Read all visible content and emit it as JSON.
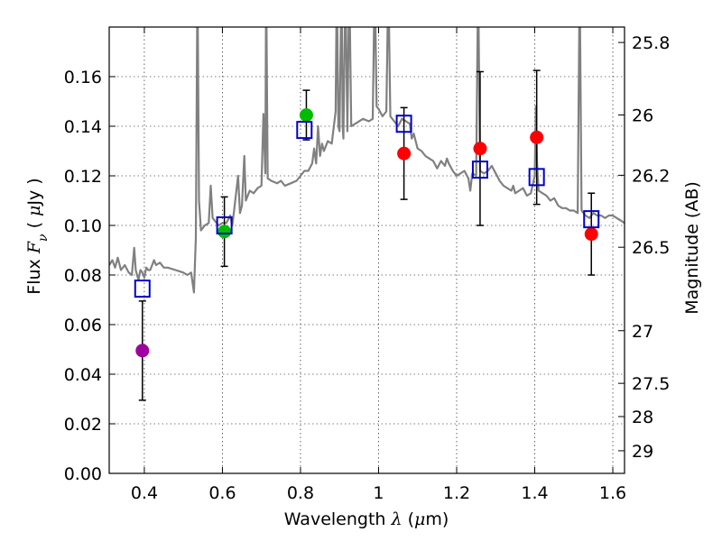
{
  "chart_data": {
    "type": "scatter",
    "xlabel": {
      "pre": "Wavelength  ",
      "sym": "λ",
      "post": " (",
      "mu": "μ",
      "unit": "m)"
    },
    "ylabel": {
      "pre": "Flux  ",
      "sym": "F",
      "sub": "ν",
      "post": "  ( ",
      "mu": "μ",
      "unit": "Jy )"
    },
    "ylabel_right": "Magnitude (AB)",
    "xlim": [
      0.31,
      1.63
    ],
    "ylim": [
      0.0,
      0.18
    ],
    "grid": true,
    "x_ticks": [
      {
        "value": 0.4,
        "label": "0.4"
      },
      {
        "value": 0.6,
        "label": "0.6"
      },
      {
        "value": 0.8,
        "label": "0.8"
      },
      {
        "value": 1.0,
        "label": "1"
      },
      {
        "value": 1.2,
        "label": "1.2"
      },
      {
        "value": 1.4,
        "label": "1.4"
      },
      {
        "value": 1.6,
        "label": "1.6"
      }
    ],
    "y_ticks": [
      {
        "value": 0.0,
        "label": "0.00"
      },
      {
        "value": 0.02,
        "label": "0.02"
      },
      {
        "value": 0.04,
        "label": "0.04"
      },
      {
        "value": 0.06,
        "label": "0.06"
      },
      {
        "value": 0.08,
        "label": "0.08"
      },
      {
        "value": 0.1,
        "label": "0.10"
      },
      {
        "value": 0.12,
        "label": "0.12"
      },
      {
        "value": 0.14,
        "label": "0.14"
      },
      {
        "value": 0.16,
        "label": "0.16"
      }
    ],
    "mag_ticks": [
      {
        "value": 25.8,
        "label": "25.8"
      },
      {
        "value": 26.0,
        "label": "26"
      },
      {
        "value": 26.2,
        "label": "26.2"
      },
      {
        "value": 26.5,
        "label": "26.5"
      },
      {
        "value": 27.0,
        "label": "27"
      },
      {
        "value": 27.5,
        "label": "27.5"
      },
      {
        "value": 28.0,
        "label": "28"
      },
      {
        "value": 29.0,
        "label": "29"
      }
    ],
    "observed": [
      {
        "x": 0.395,
        "y": 0.0495,
        "yerr": 0.02,
        "color": "#a000a0"
      },
      {
        "x": 0.605,
        "y": 0.0975,
        "yerr": 0.014,
        "color": "#00bb00"
      },
      {
        "x": 0.815,
        "y": 0.1445,
        "yerr": 0.01,
        "color": "#00bb00"
      },
      {
        "x": 1.065,
        "y": 0.129,
        "yerr": 0.0185,
        "color": "#ff0000"
      },
      {
        "x": 1.26,
        "y": 0.131,
        "yerr": 0.031,
        "color": "#ff0000"
      },
      {
        "x": 1.405,
        "y": 0.1355,
        "yerr": 0.027,
        "color": "#ff0000"
      },
      {
        "x": 1.545,
        "y": 0.0965,
        "yerr": 0.0165,
        "color": "#ff0000"
      }
    ],
    "model_points": [
      {
        "x": 0.395,
        "y": 0.0745
      },
      {
        "x": 0.605,
        "y": 0.1
      },
      {
        "x": 0.81,
        "y": 0.1385
      },
      {
        "x": 1.065,
        "y": 0.141
      },
      {
        "x": 1.26,
        "y": 0.1225
      },
      {
        "x": 1.405,
        "y": 0.1195
      },
      {
        "x": 1.545,
        "y": 0.1025
      }
    ],
    "model_spectrum": {
      "color": "#808080",
      "points": [
        [
          0.31,
          0.084
        ],
        [
          0.318,
          0.086
        ],
        [
          0.325,
          0.083
        ],
        [
          0.332,
          0.087
        ],
        [
          0.34,
          0.082
        ],
        [
          0.35,
          0.084
        ],
        [
          0.36,
          0.081
        ],
        [
          0.368,
          0.08
        ],
        [
          0.374,
          0.091
        ],
        [
          0.378,
          0.082
        ],
        [
          0.385,
          0.078
        ],
        [
          0.39,
          0.082
        ],
        [
          0.395,
          0.081
        ],
        [
          0.4,
          0.079
        ],
        [
          0.405,
          0.083
        ],
        [
          0.41,
          0.082
        ],
        [
          0.415,
          0.082
        ],
        [
          0.42,
          0.084
        ],
        [
          0.425,
          0.086
        ],
        [
          0.43,
          0.084
        ],
        [
          0.44,
          0.085
        ],
        [
          0.45,
          0.083
        ],
        [
          0.46,
          0.083
        ],
        [
          0.48,
          0.082
        ],
        [
          0.5,
          0.081
        ],
        [
          0.51,
          0.08
        ],
        [
          0.52,
          0.081
        ],
        [
          0.527,
          0.073
        ],
        [
          0.532,
          0.095
        ],
        [
          0.536,
          0.2
        ],
        [
          0.54,
          0.11
        ],
        [
          0.545,
          0.098
        ],
        [
          0.555,
          0.1
        ],
        [
          0.565,
          0.101
        ],
        [
          0.57,
          0.116
        ],
        [
          0.575,
          0.103
        ],
        [
          0.59,
          0.1
        ],
        [
          0.6,
          0.101
        ],
        [
          0.61,
          0.101
        ],
        [
          0.62,
          0.104
        ],
        [
          0.625,
          0.1
        ],
        [
          0.63,
          0.106
        ],
        [
          0.64,
          0.12
        ],
        [
          0.645,
          0.105
        ],
        [
          0.65,
          0.108
        ],
        [
          0.656,
          0.128
        ],
        [
          0.66,
          0.11
        ],
        [
          0.67,
          0.114
        ],
        [
          0.68,
          0.113
        ],
        [
          0.69,
          0.115
        ],
        [
          0.7,
          0.116
        ],
        [
          0.705,
          0.145
        ],
        [
          0.71,
          0.121
        ],
        [
          0.712,
          0.2
        ],
        [
          0.716,
          0.119
        ],
        [
          0.725,
          0.118
        ],
        [
          0.74,
          0.117
        ],
        [
          0.75,
          0.118
        ],
        [
          0.76,
          0.116
        ],
        [
          0.775,
          0.117
        ],
        [
          0.79,
          0.118
        ],
        [
          0.8,
          0.12
        ],
        [
          0.81,
          0.122
        ],
        [
          0.82,
          0.122
        ],
        [
          0.83,
          0.125
        ],
        [
          0.835,
          0.131
        ],
        [
          0.84,
          0.125
        ],
        [
          0.845,
          0.14
        ],
        [
          0.85,
          0.128
        ],
        [
          0.855,
          0.133
        ],
        [
          0.86,
          0.13
        ],
        [
          0.87,
          0.134
        ],
        [
          0.88,
          0.133
        ],
        [
          0.89,
          0.146
        ],
        [
          0.893,
          0.2
        ],
        [
          0.897,
          0.14
        ],
        [
          0.9,
          0.138
        ],
        [
          0.905,
          0.2
        ],
        [
          0.908,
          0.14
        ],
        [
          0.91,
          0.135
        ],
        [
          0.915,
          0.2
        ],
        [
          0.92,
          0.138
        ],
        [
          0.925,
          0.2
        ],
        [
          0.93,
          0.14
        ],
        [
          0.94,
          0.141
        ],
        [
          0.96,
          0.143
        ],
        [
          0.975,
          0.142
        ],
        [
          0.985,
          0.143
        ],
        [
          0.99,
          0.2
        ],
        [
          0.995,
          0.148
        ],
        [
          1.0,
          0.147
        ],
        [
          1.01,
          0.144
        ],
        [
          1.02,
          0.146
        ],
        [
          1.025,
          0.2
        ],
        [
          1.03,
          0.144
        ],
        [
          1.04,
          0.142
        ],
        [
          1.05,
          0.14
        ],
        [
          1.06,
          0.143
        ],
        [
          1.07,
          0.142
        ],
        [
          1.08,
          0.141
        ],
        [
          1.085,
          0.135
        ],
        [
          1.09,
          0.137
        ],
        [
          1.1,
          0.131
        ],
        [
          1.11,
          0.13
        ],
        [
          1.12,
          0.128
        ],
        [
          1.13,
          0.127
        ],
        [
          1.14,
          0.126
        ],
        [
          1.15,
          0.123
        ],
        [
          1.16,
          0.126
        ],
        [
          1.17,
          0.124
        ],
        [
          1.175,
          0.127
        ],
        [
          1.18,
          0.125
        ],
        [
          1.19,
          0.122
        ],
        [
          1.2,
          0.12
        ],
        [
          1.21,
          0.121
        ],
        [
          1.22,
          0.122
        ],
        [
          1.23,
          0.119
        ],
        [
          1.235,
          0.114
        ],
        [
          1.24,
          0.121
        ],
        [
          1.25,
          0.12
        ],
        [
          1.255,
          0.2
        ],
        [
          1.26,
          0.122
        ],
        [
          1.27,
          0.121
        ],
        [
          1.28,
          0.122
        ],
        [
          1.29,
          0.124
        ],
        [
          1.3,
          0.121
        ],
        [
          1.31,
          0.118
        ],
        [
          1.32,
          0.116
        ],
        [
          1.33,
          0.115
        ],
        [
          1.34,
          0.114
        ],
        [
          1.345,
          0.116
        ],
        [
          1.35,
          0.113
        ],
        [
          1.36,
          0.114
        ],
        [
          1.37,
          0.115
        ],
        [
          1.38,
          0.112
        ],
        [
          1.39,
          0.113
        ],
        [
          1.4,
          0.12
        ],
        [
          1.403,
          0.148
        ],
        [
          1.406,
          0.125
        ],
        [
          1.41,
          0.114
        ],
        [
          1.42,
          0.113
        ],
        [
          1.43,
          0.112
        ],
        [
          1.44,
          0.11
        ],
        [
          1.45,
          0.111
        ],
        [
          1.46,
          0.108
        ],
        [
          1.47,
          0.107
        ],
        [
          1.48,
          0.107
        ],
        [
          1.49,
          0.106
        ],
        [
          1.5,
          0.106
        ],
        [
          1.51,
          0.105
        ],
        [
          1.515,
          0.2
        ],
        [
          1.52,
          0.106
        ],
        [
          1.53,
          0.104
        ],
        [
          1.54,
          0.103
        ],
        [
          1.55,
          0.105
        ],
        [
          1.56,
          0.104
        ],
        [
          1.57,
          0.104
        ],
        [
          1.58,
          0.103
        ],
        [
          1.59,
          0.104
        ],
        [
          1.6,
          0.104
        ],
        [
          1.61,
          0.103
        ],
        [
          1.62,
          0.102
        ],
        [
          1.63,
          0.101
        ]
      ]
    }
  }
}
